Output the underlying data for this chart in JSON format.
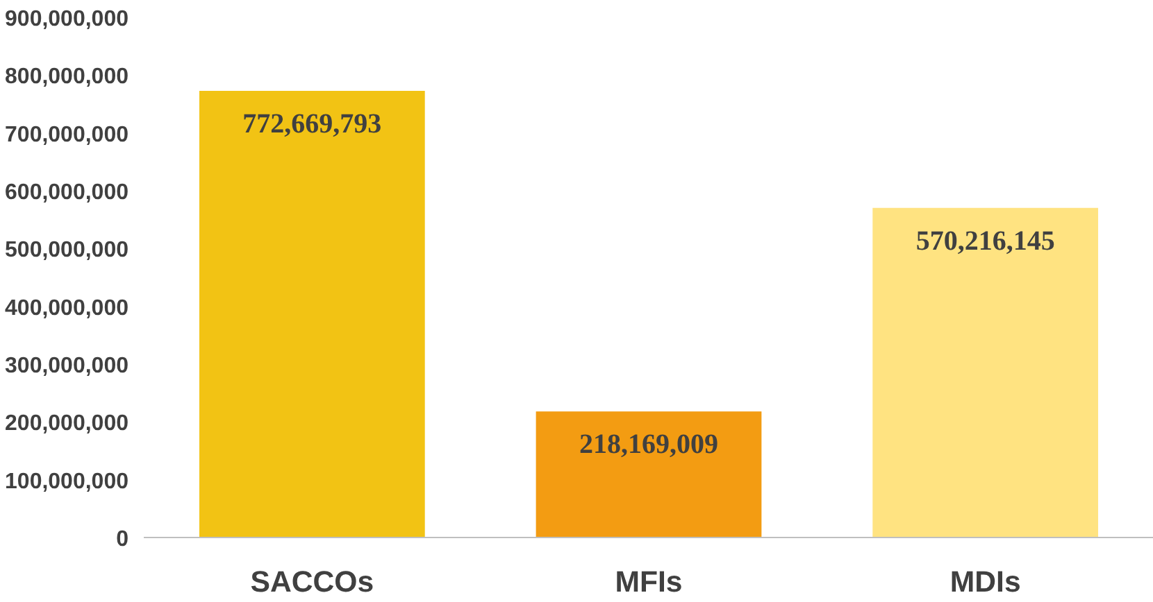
{
  "chart_data": {
    "type": "bar",
    "categories": [
      "SACCOs",
      "MFIs",
      "MDIs"
    ],
    "values": [
      772669793,
      218169009,
      570216145
    ],
    "colors": [
      "#f2c314",
      "#f39c12",
      "#ffe381"
    ],
    "ylim": [
      0,
      900000000
    ],
    "yticks": [
      {
        "value": 0,
        "label": "0"
      },
      {
        "value": 100000000,
        "label": "100,000,000"
      },
      {
        "value": 200000000,
        "label": "200,000,000"
      },
      {
        "value": 300000000,
        "label": "300,000,000"
      },
      {
        "value": 400000000,
        "label": "400,000,000"
      },
      {
        "value": 500000000,
        "label": "500,000,000"
      },
      {
        "value": 600000000,
        "label": "600,000,000"
      },
      {
        "value": 700000000,
        "label": "700,000,000"
      },
      {
        "value": 800000000,
        "label": "800,000,000"
      },
      {
        "value": 900000000,
        "label": "900,000,000"
      }
    ],
    "grid": false,
    "value_labels": [
      "772,669,793",
      "218,169,009",
      "570,216,145"
    ]
  }
}
